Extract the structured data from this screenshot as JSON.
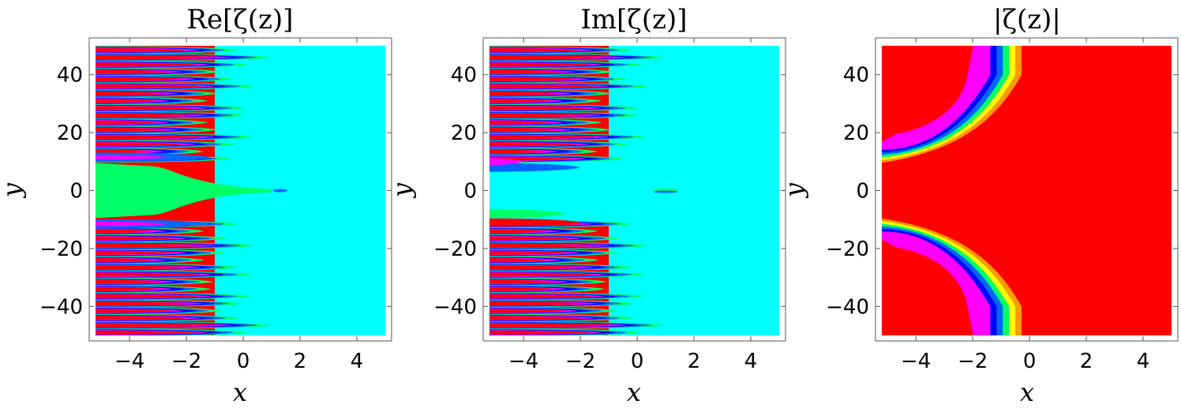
{
  "chart_data": [
    {
      "type": "contour",
      "title": "Re[ζ(z)]",
      "xlabel": "x",
      "ylabel": "y",
      "xlim": [
        -5,
        5
      ],
      "ylim": [
        -50,
        50
      ],
      "x_ticks": [
        "−4",
        "−2",
        "0",
        "2",
        "4"
      ],
      "x_tick_values": [
        -4,
        -2,
        0,
        2,
        4
      ],
      "y_ticks": [
        "40",
        "20",
        "0",
        "−20",
        "−40"
      ],
      "y_tick_values": [
        40,
        20,
        0,
        -20,
        -40
      ],
      "background_color": "#00ffff",
      "region_colors": [
        "#ff0000",
        "#ff00ff",
        "#0000ff",
        "#0066ff",
        "#00ff66",
        "#ffff00",
        "#00ffff"
      ],
      "features": {
        "left_region_color": "#ff0000",
        "center_band_color": "#00ff66",
        "center_band_y": [
          -10,
          10
        ],
        "center_tongue_tip_x": 1.0,
        "small_ellipse": {
          "x": 1.3,
          "y": 0,
          "color": "#0066ff"
        },
        "fingers_tip_x_range": [
          -1.2,
          1.2
        ],
        "fingers_y_step": 2.5
      }
    },
    {
      "type": "contour",
      "title": "Im[ζ(z)]",
      "xlabel": "x",
      "ylabel": "y",
      "xlim": [
        -5,
        5
      ],
      "ylim": [
        -50,
        50
      ],
      "x_ticks": [
        "−4",
        "−2",
        "0",
        "2",
        "4"
      ],
      "x_tick_values": [
        -4,
        -2,
        0,
        2,
        4
      ],
      "y_ticks": [
        "40",
        "20",
        "0",
        "−20",
        "−40"
      ],
      "y_tick_values": [
        40,
        20,
        0,
        -20,
        -40
      ],
      "background_color": "#00ffff",
      "region_colors": [
        "#ff0000",
        "#ff00ff",
        "#0000ff",
        "#0066ff",
        "#00ff66",
        "#ffff00",
        "#00ffff"
      ],
      "features": {
        "left_region_color": "#ff0000",
        "center_gap_y": [
          -8,
          8
        ],
        "small_ellipse": {
          "x": 1.0,
          "y": 0,
          "color": "#0066ff"
        },
        "fingers_tip_x_range": [
          -1.2,
          1.2
        ],
        "fingers_y_step": 2.5
      }
    },
    {
      "type": "contour",
      "title": "|ζ(z)|",
      "xlabel": "x",
      "ylabel": "y",
      "xlim": [
        -5,
        5
      ],
      "ylim": [
        -50,
        50
      ],
      "x_ticks": [
        "−4",
        "−2",
        "0",
        "2",
        "4"
      ],
      "x_tick_values": [
        -4,
        -2,
        0,
        2,
        4
      ],
      "y_ticks": [
        "40",
        "20",
        "0",
        "−20",
        "−40"
      ],
      "y_tick_values": [
        40,
        20,
        0,
        -20,
        -40
      ],
      "background_color": "#ff0000",
      "region_colors": [
        "#ff0000",
        "#ff00ff",
        "#0000ff",
        "#0066ff",
        "#00ff66",
        "#ffff00",
        "#ff9900"
      ],
      "features": {
        "contour_band_colors": [
          "#ff00ff",
          "#0000ff",
          "#0066ff",
          "#00ff66",
          "#ffff00",
          "#ff9900"
        ],
        "band_y_start": 10,
        "band_x_limit": -1.0
      }
    }
  ]
}
